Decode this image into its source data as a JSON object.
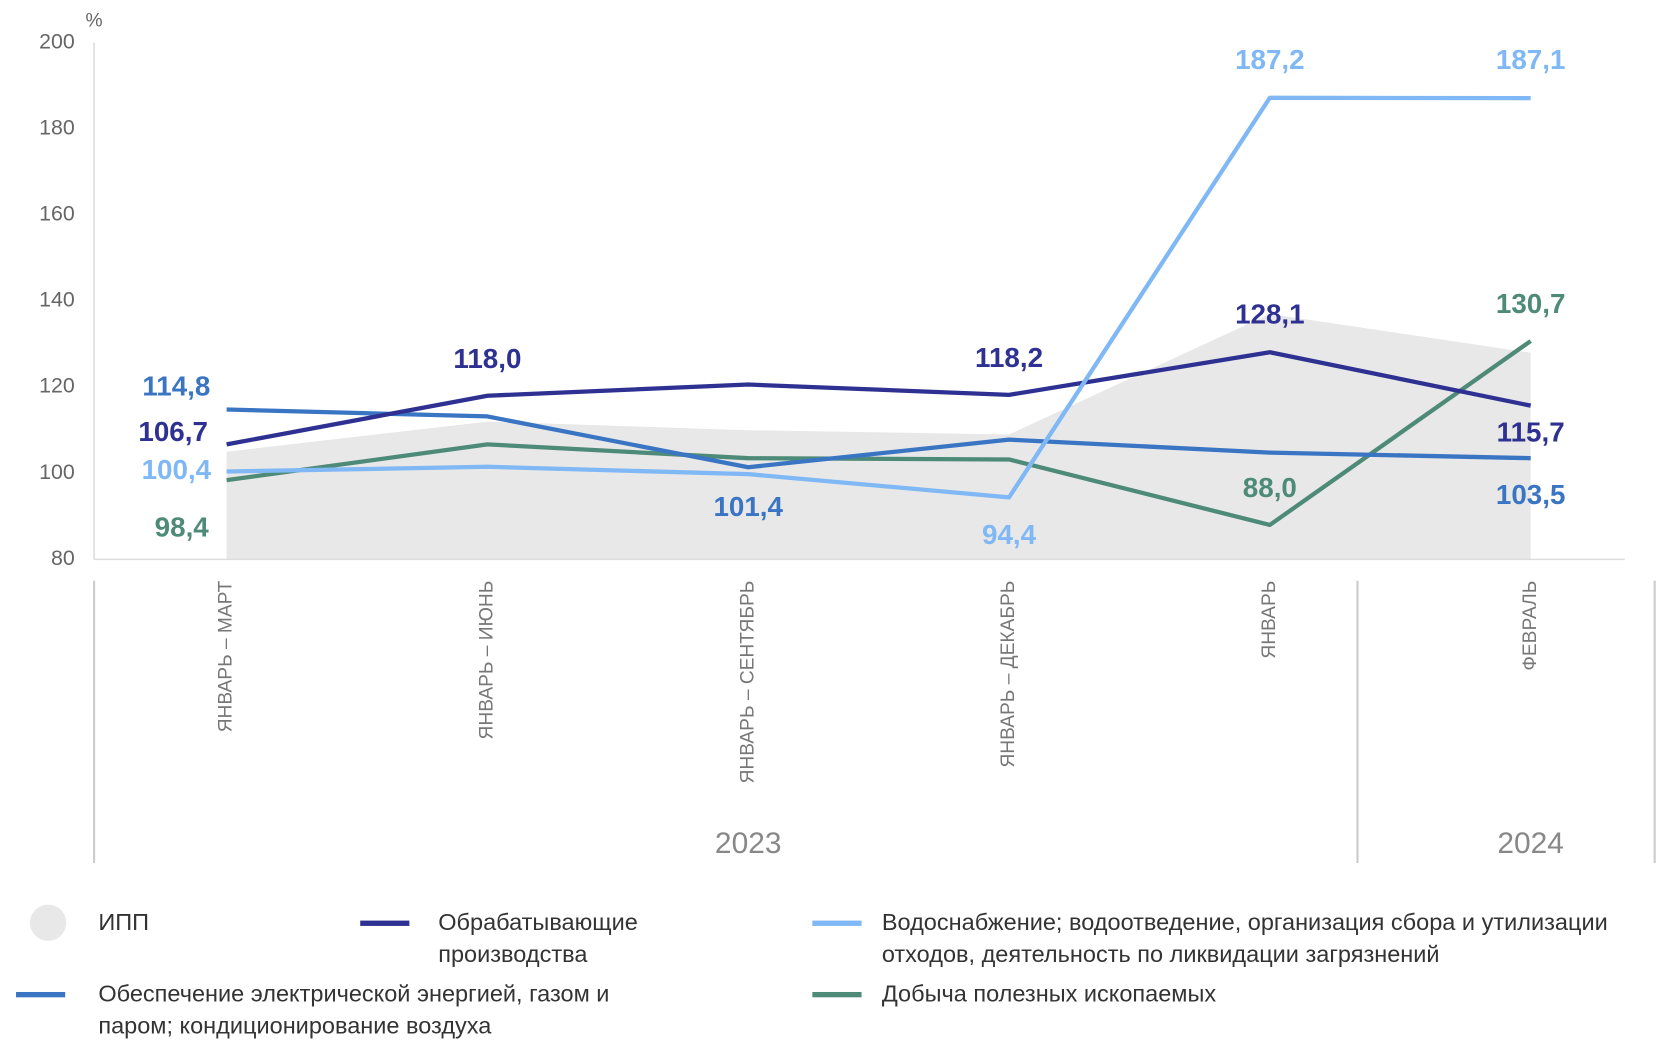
{
  "chart_data": {
    "type": "line",
    "y_unit": "%",
    "categories": [
      "ЯНВАРЬ – МАРТ",
      "ЯНВАРЬ – ИЮНЬ",
      "ЯНВАРЬ – СЕНТЯБРЬ",
      "ЯНВАРЬ – ДЕКАБРЬ",
      "ЯНВАРЬ",
      "ФЕВРАЛЬ"
    ],
    "year_groups": [
      {
        "label": "2023",
        "count": 5
      },
      {
        "label": "2024",
        "count": 1
      }
    ],
    "ylim": [
      80,
      200
    ],
    "yticks": [
      80,
      100,
      120,
      140,
      160,
      180,
      200
    ],
    "area_series": {
      "name": "ИПП",
      "color": "#e8e8e8",
      "values": [
        105,
        112,
        110,
        109,
        137,
        128
      ]
    },
    "series": [
      {
        "name": "Обрабатывающие производства",
        "color": "#2e3192",
        "values": [
          106.7,
          118.0,
          120.6,
          118.2,
          128.1,
          115.7
        ],
        "value_labels": [
          "106,7",
          "118,0",
          null,
          "118,2",
          "128,1",
          "115,7"
        ]
      },
      {
        "name": "Водоснабжение; водоотведение, организация сбора и утилизации отходов, деятельность по ликвидации загрязнений",
        "color": "#7fb8f5",
        "values": [
          100.4,
          101.5,
          99.8,
          94.4,
          187.2,
          187.1
        ],
        "value_labels": [
          "100,4",
          null,
          null,
          "94,4",
          "187,2",
          "187,1"
        ]
      },
      {
        "name": "Обеспечение электрической энергией, газом и паром; кондиционирование воздуха",
        "color": "#3a75c4",
        "values": [
          114.8,
          113.2,
          101.4,
          107.8,
          104.8,
          103.5
        ],
        "value_labels": [
          "114,8",
          null,
          "101,4",
          null,
          null,
          "103,5"
        ]
      },
      {
        "name": "Добыча полезных ископаемых",
        "color": "#4e8a78",
        "values": [
          98.4,
          106.7,
          103.5,
          103.2,
          88.0,
          130.7
        ],
        "value_labels": [
          "98,4",
          null,
          null,
          null,
          "88,0",
          "130,7"
        ]
      }
    ]
  }
}
